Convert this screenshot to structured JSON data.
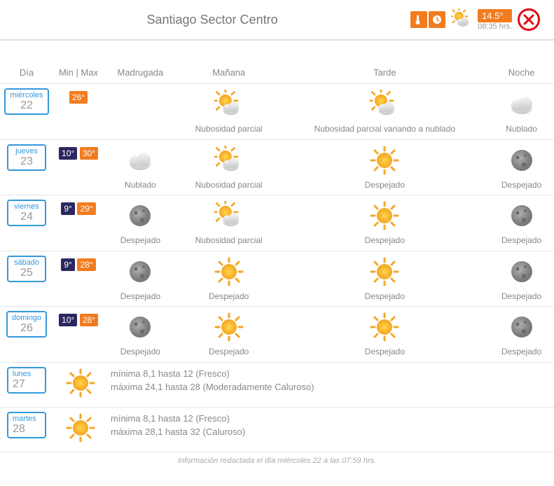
{
  "header": {
    "title": "Santiago Sector Centro",
    "current_temp": "14.5°",
    "current_time": "08:35 hrs."
  },
  "columns": {
    "day": "Día",
    "minmax": "Min | Max",
    "madrugada": "Madrugada",
    "manana": "Mañana",
    "tarde": "Tarde",
    "noche": "Noche"
  },
  "days": [
    {
      "name": "miércoles",
      "num": "22",
      "min": "",
      "max": "26°",
      "periods": [
        {
          "icon": "",
          "label": ""
        },
        {
          "icon": "sun-cloud",
          "label": "Nubosidad parcial"
        },
        {
          "icon": "sun-cloud",
          "label": "Nubosidad parcial variando a nublado"
        },
        {
          "icon": "cloud",
          "label": "Nublado"
        }
      ]
    },
    {
      "name": "jueves",
      "num": "23",
      "min": "10°",
      "max": "30°",
      "periods": [
        {
          "icon": "cloud",
          "label": "Nublado"
        },
        {
          "icon": "sun-cloud",
          "label": "Nubosidad parcial"
        },
        {
          "icon": "sun",
          "label": "Despejado"
        },
        {
          "icon": "moon",
          "label": "Despejado"
        }
      ]
    },
    {
      "name": "viernes",
      "num": "24",
      "min": "9°",
      "max": "29°",
      "periods": [
        {
          "icon": "moon",
          "label": "Despejado"
        },
        {
          "icon": "sun-cloud",
          "label": "Nubosidad parcial"
        },
        {
          "icon": "sun",
          "label": "Despejado"
        },
        {
          "icon": "moon",
          "label": "Despejado"
        }
      ]
    },
    {
      "name": "sábado",
      "num": "25",
      "min": "9°",
      "max": "28°",
      "periods": [
        {
          "icon": "moon",
          "label": "Despejado"
        },
        {
          "icon": "sun",
          "label": "Despejado"
        },
        {
          "icon": "sun",
          "label": "Despejado"
        },
        {
          "icon": "moon",
          "label": "Despejado"
        }
      ]
    },
    {
      "name": "domingo",
      "num": "26",
      "min": "10°",
      "max": "28°",
      "periods": [
        {
          "icon": "moon",
          "label": "Despejado"
        },
        {
          "icon": "sun",
          "label": "Despejado"
        },
        {
          "icon": "sun",
          "label": "Despejado"
        },
        {
          "icon": "moon",
          "label": "Despejado"
        }
      ]
    }
  ],
  "summary": [
    {
      "name": "lunes",
      "num": "27",
      "icon": "sun",
      "line1": "mínima 8,1 hasta 12 (Fresco)",
      "line2": "máxima 24,1 hasta 28 (Moderadamente Caluroso)"
    },
    {
      "name": "martes",
      "num": "28",
      "icon": "sun",
      "line1": "mínima 8,1 hasta 12 (Fresco)",
      "line2": "máxima 28,1 hasta 32 (Caluroso)"
    }
  ],
  "footer": "Información redactada el día miércoles 22 a las 07:59 hrs."
}
